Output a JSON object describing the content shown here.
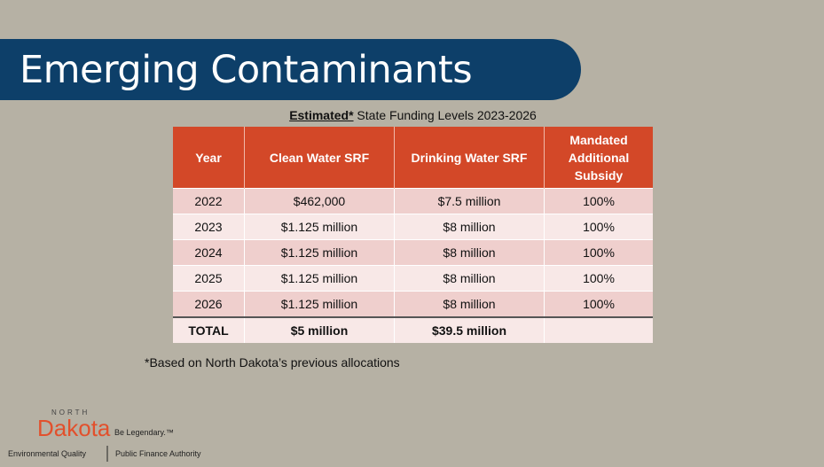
{
  "title": "Emerging Contaminants",
  "caption": {
    "emphasis": "Estimated*",
    "rest": " State Funding Levels 2023-2026"
  },
  "table": {
    "headers": [
      "Year",
      "Clean Water SRF",
      "Drinking Water SRF",
      "Mandated Additional Subsidy"
    ],
    "rows": [
      [
        "2022",
        "$462,000",
        "$7.5 million",
        "100%"
      ],
      [
        "2023",
        "$1.125 million",
        "$8 million",
        "100%"
      ],
      [
        "2024",
        "$1.125 million",
        "$8 million",
        "100%"
      ],
      [
        "2025",
        "$1.125 million",
        "$8 million",
        "100%"
      ],
      [
        "2026",
        "$1.125 million",
        "$8 million",
        "100%"
      ]
    ],
    "total": [
      "TOTAL",
      "$5 million",
      "$39.5 million",
      ""
    ]
  },
  "footnote": "*Based on North Dakota’s previous allocations",
  "logo": {
    "north": "NORTH",
    "dakota": "Dakota",
    "tagline": "Be Legendary.™",
    "dept1": "Environmental Quality",
    "dept2": "Public Finance Authority"
  },
  "colors": {
    "banner": "#0d3f69",
    "header": "#d34828",
    "row_odd": "#efcfcd",
    "row_even": "#f8e8e7",
    "logo": "#e2502c"
  }
}
